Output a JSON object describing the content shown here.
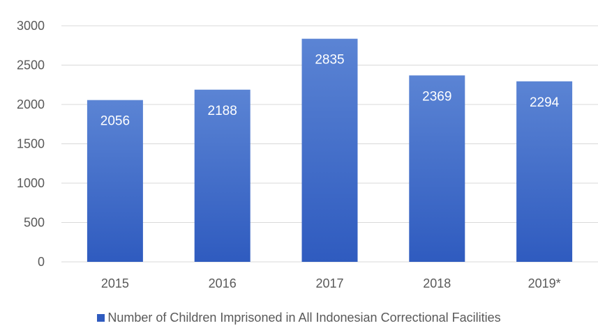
{
  "chart_data": {
    "type": "bar",
    "title": "",
    "xlabel": "",
    "ylabel": "",
    "categories": [
      "2015",
      "2016",
      "2017",
      "2018",
      "2019*"
    ],
    "series": [
      {
        "name": "Number of Children Imprisoned in All Indonesian Correctional Facilities",
        "values": [
          2056,
          2188,
          2835,
          2369,
          2294
        ]
      }
    ],
    "ylim": [
      0,
      3000
    ],
    "yticks": [
      "0",
      "500",
      "1000",
      "1500",
      "2000",
      "2500",
      "3000"
    ],
    "grid": true,
    "data_labels": true,
    "legend_position": "bottom",
    "colors": {
      "bar_top": "#5B84D4",
      "bar_bottom": "#2F5BBF",
      "grid": "#D9D9D9",
      "text": "#595959"
    }
  }
}
